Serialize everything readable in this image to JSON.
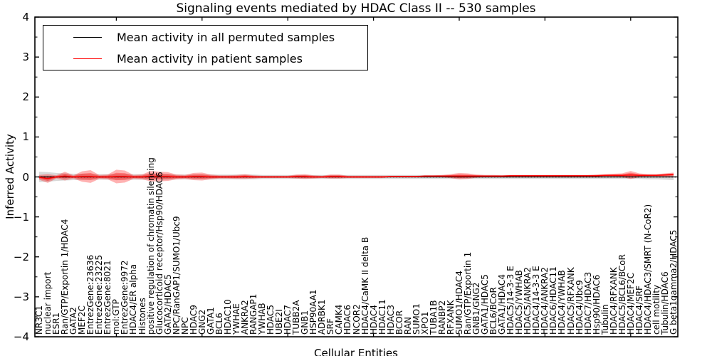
{
  "title": "Signaling events mediated by HDAC Class II -- 530 samples",
  "axes": {
    "y": {
      "label": "Inferred Activity",
      "ticks": [
        4,
        3,
        2,
        1,
        0,
        -1,
        -2,
        -3,
        -4
      ],
      "min": -4,
      "max": 4,
      "minor_step": 0.5
    },
    "x": {
      "label": "Cellular Entities",
      "major_tick_every": 10
    }
  },
  "legend": {
    "items": [
      {
        "label": "Mean activity in all permuted samples",
        "color": "#000000"
      },
      {
        "label": "Mean activity in patient samples",
        "color": "#ff0000"
      }
    ]
  },
  "colors": {
    "frame": "#000000",
    "zero_line": "#000000",
    "permuted_line": "#000000",
    "patient_line": "#ff0000",
    "patient_band": "#ff0000",
    "permuted_band": "#d9d9d9",
    "background": "#ffffff"
  },
  "chart_data": {
    "type": "line",
    "title": "Signaling events mediated by HDAC Class II -- 530 samples",
    "xlabel": "Cellular Entities",
    "ylabel": "Inferred Activity",
    "ylim": [
      -4,
      4
    ],
    "grid": false,
    "legend_position": "upper left",
    "zero_reference_line": true,
    "categories": [
      "NR3C1",
      "nuclear import",
      "ESR1",
      "Ran/GTP/Exportin 1/HDAC4",
      "GATA2",
      "MEF2C",
      "EntrezGene:23636",
      "EntrezGene:23225",
      "EntrezGene:8021",
      "mol:GTP",
      "EntrezGene:9972",
      "HDAC4/ER alpha",
      "Histones",
      "positive regulation of chromatin silencing",
      "Glucocorticoid receptor/Hsp90/HDAC6",
      "GATA2/HDAC5",
      "NPC/RanGAP1/SUMO1/Ubc9",
      "NPC",
      "HDAC9",
      "GNG2",
      "GATA1",
      "BCL6",
      "HDAC10",
      "YWHAE",
      "ANKRA2",
      "RANGAP1",
      "YWHAB",
      "HDAC5",
      "UBE2I",
      "HDAC7",
      "TUBB2A",
      "GNB1",
      "HSP90AA1",
      "ADRBK1",
      "SRF",
      "CAMK4",
      "HDAC6",
      "NCOR2",
      "HDAC4/CaMK II delta B",
      "HDAC4",
      "HDAC11",
      "HDAC3",
      "BCOR",
      "RAN",
      "SUMO1",
      "XPO1",
      "TUBA1B",
      "RANBP2",
      "RFXANK",
      "SUMO1/HDAC4",
      "Ran/GTP/Exportin 1",
      "GNB1/GNG2",
      "GATA1/HDAC5",
      "BCL6/BCoR",
      "GATA1/HDAC4",
      "HDAC5/14-3-3 E",
      "HDAC5/YWHAB",
      "HDAC5/ANKRA2",
      "HDAC4/14-3-3 E",
      "HDAC4/ANKRA2",
      "HDAC6/HDAC11",
      "HDAC4/YWHAB",
      "HDAC5/RFXANK",
      "HDAC4/Ubc9",
      "HDAC7/HDAC3",
      "Hsp90/HDAC6",
      "Tubulin",
      "HDAC4/RFXANK",
      "HDAC5/BCL6/BCoR",
      "HDAC4/MEF2C",
      "HDAC4/SRF",
      "HDAC4/HDAC3/SMRT (N-CoR2)",
      "cell motility",
      "Tubulin/HDAC6",
      "G beta1gamma2/HDAC5"
    ],
    "series": [
      {
        "name": "Mean activity in all permuted samples",
        "color": "#000000",
        "values": [
          0,
          0,
          0,
          0,
          0,
          0,
          0,
          0,
          0,
          0,
          0,
          0,
          0,
          0,
          0,
          0,
          0,
          0,
          0,
          0,
          0,
          0,
          0,
          0,
          0,
          0,
          0,
          0,
          0,
          0,
          0,
          0,
          0,
          0,
          0,
          0,
          0,
          0,
          0,
          0,
          0,
          0,
          0,
          0,
          0,
          0,
          0,
          0,
          0,
          0,
          0,
          0,
          0,
          0,
          0,
          0,
          0,
          0,
          0,
          0,
          0,
          0,
          0,
          0,
          0,
          0,
          0,
          0,
          0,
          0,
          0,
          0,
          0,
          0,
          0
        ],
        "band_half_width": [
          0.13,
          0.12,
          0.1,
          0.09,
          0.08,
          0.08,
          0.07,
          0.07,
          0.07,
          0.07,
          0.07,
          0.07,
          0.07,
          0.07,
          0.07,
          0.07,
          0.06,
          0.06,
          0.06,
          0.06,
          0.06,
          0.06,
          0.06,
          0.06,
          0.06,
          0.06,
          0.05,
          0.05,
          0.05,
          0.05,
          0.05,
          0.05,
          0.05,
          0.05,
          0.05,
          0.05,
          0.05,
          0.05,
          0.05,
          0.05,
          0.05,
          0.05,
          0.05,
          0.05,
          0.05,
          0.05,
          0.05,
          0.05,
          0.05,
          0.05,
          0.05,
          0.05,
          0.05,
          0.05,
          0.05,
          0.05,
          0.05,
          0.05,
          0.05,
          0.05,
          0.05,
          0.05,
          0.05,
          0.05,
          0.05,
          0.05,
          0.05,
          0.05,
          0.05,
          0.05,
          0.05,
          0.06,
          0.06,
          0.07,
          0.08
        ]
      },
      {
        "name": "Mean activity in patient samples",
        "color": "#ff0000",
        "values": [
          -0.01,
          -0.04,
          0,
          0.02,
          0,
          0.01,
          0.01,
          0,
          0,
          0.01,
          0.01,
          0,
          0,
          0.02,
          0.01,
          0.01,
          0,
          0,
          0.01,
          0.01,
          0,
          0,
          0,
          0,
          0.01,
          0,
          0,
          0,
          0,
          0,
          0.01,
          0.01,
          0,
          0,
          0.01,
          0.01,
          0,
          0,
          0,
          0,
          0,
          0.01,
          0.01,
          0.01,
          0.01,
          0.02,
          0.02,
          0.02,
          0.02,
          0.02,
          0.02,
          0.02,
          0.02,
          0.02,
          0.02,
          0.03,
          0.03,
          0.03,
          0.03,
          0.03,
          0.03,
          0.03,
          0.03,
          0.03,
          0.03,
          0.03,
          0.04,
          0.04,
          0.04,
          0.05,
          0.04,
          0.04,
          0.04,
          0.05,
          0.06
        ],
        "band_half_width": [
          0.06,
          0.11,
          0.04,
          0.11,
          0.04,
          0.13,
          0.16,
          0.05,
          0.06,
          0.17,
          0.15,
          0.05,
          0.06,
          0.13,
          0.12,
          0.11,
          0.06,
          0.05,
          0.09,
          0.1,
          0.06,
          0.04,
          0.04,
          0.05,
          0.06,
          0.04,
          0.03,
          0.03,
          0.03,
          0.03,
          0.05,
          0.06,
          0.04,
          0.03,
          0.05,
          0.05,
          0.03,
          0.03,
          0.03,
          0.03,
          0.03,
          0.02,
          0.02,
          0.02,
          0.02,
          0.02,
          0.02,
          0.03,
          0.05,
          0.08,
          0.07,
          0.04,
          0.03,
          0.03,
          0.02,
          0.02,
          0.02,
          0.02,
          0.02,
          0.02,
          0.02,
          0.02,
          0.02,
          0.02,
          0.02,
          0.03,
          0.03,
          0.04,
          0.05,
          0.1,
          0.05,
          0.03,
          0.03,
          0.04,
          0.05
        ]
      }
    ]
  }
}
